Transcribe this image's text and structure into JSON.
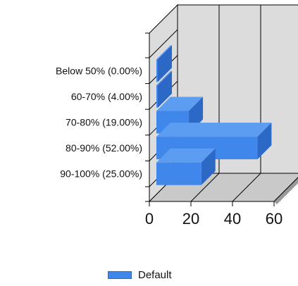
{
  "chart_data": {
    "type": "bar",
    "orientation": "horizontal",
    "three_d": true,
    "categories": [
      "Below 50% (0.00%)",
      "60-70% (4.00%)",
      "70-80% (19.00%)",
      "80-90% (52.00%)",
      "90-100% (25.00%)"
    ],
    "series": [
      {
        "name": "Default",
        "values": [
          0,
          4,
          19,
          52,
          25
        ]
      }
    ],
    "xlim": [
      0,
      60
    ],
    "xticks": [
      "0",
      "20",
      "40",
      "60"
    ],
    "grid": true,
    "legend": {
      "position": "bottom",
      "entries": [
        "Default"
      ]
    },
    "colors": {
      "bar_front": "#3f87ea",
      "bar_top": "#5c9df2",
      "bar_side": "#2c68c6",
      "wall": "#dcdcdc",
      "floor": "#c9c9c9"
    }
  }
}
